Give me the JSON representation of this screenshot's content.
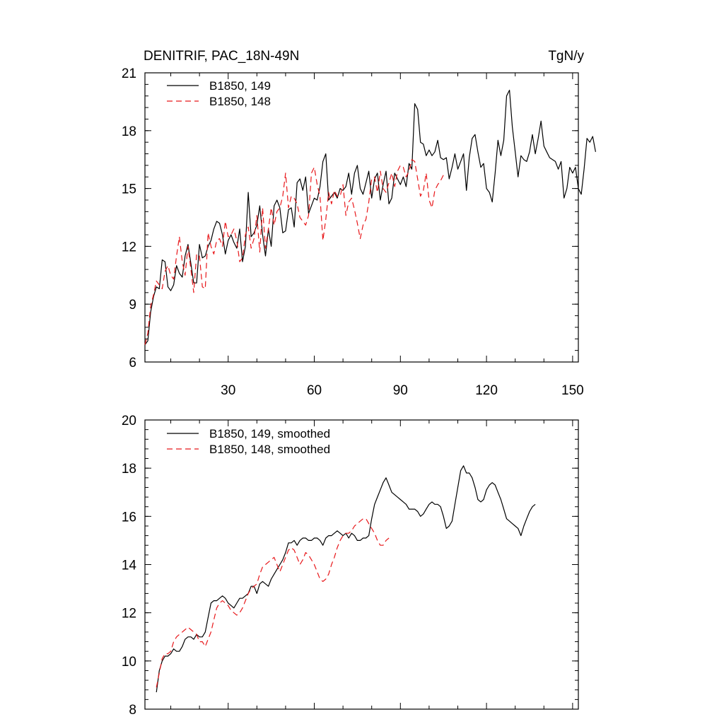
{
  "chart_data": [
    {
      "type": "line",
      "title": "DENITRIF, PAC_18N-49N",
      "units": "TgN/y",
      "xlabel": "",
      "ylabel": "",
      "xlim": [
        1,
        152
      ],
      "ylim": [
        6,
        21
      ],
      "xticks": [
        30,
        60,
        90,
        120,
        150
      ],
      "xtick_labels": [
        "30",
        "60",
        "90",
        "120",
        "150"
      ],
      "yticks": [
        6,
        9,
        12,
        15,
        18,
        21
      ],
      "ytick_labels": [
        "6",
        "9",
        "12",
        "15",
        "18",
        "21"
      ],
      "legend_position": "top-left",
      "series": [
        {
          "name": "B1850, 149",
          "color": "#000000",
          "dash": "solid",
          "x_start": 1,
          "values": [
            6.9,
            7.1,
            8.6,
            9.4,
            9.9,
            9.8,
            11.3,
            11.2,
            9.9,
            9.7,
            10.0,
            11.0,
            10.6,
            10.4,
            11.5,
            12.1,
            11.1,
            10.1,
            10.1,
            12.1,
            11.4,
            11.5,
            12.0,
            12.3,
            12.9,
            13.3,
            13.2,
            12.6,
            11.6,
            12.3,
            12.6,
            12.2,
            11.9,
            12.9,
            11.2,
            12.0,
            14.8,
            12.5,
            12.7,
            13.1,
            14.1,
            12.6,
            11.5,
            12.9,
            12.0,
            14.1,
            14.4,
            14.0,
            12.7,
            12.8,
            13.9,
            14.0,
            13.0,
            15.3,
            15.5,
            14.9,
            15.6,
            13.7,
            14.1,
            14.5,
            14.4,
            15.1,
            16.4,
            16.8,
            14.4,
            14.6,
            14.8,
            14.5,
            15.0,
            14.9,
            15.1,
            15.8,
            14.7,
            15.8,
            16.2,
            15.0,
            14.7,
            15.3,
            15.9,
            14.5,
            15.5,
            15.8,
            14.4,
            15.2,
            15.9,
            14.2,
            14.5,
            15.8,
            15.5,
            15.2,
            15.6,
            15.1,
            16.3,
            16.0,
            19.4,
            19.1,
            17.4,
            17.3,
            16.7,
            17.0,
            16.7,
            16.9,
            17.5,
            16.6,
            16.5,
            16.6,
            15.5,
            16.1,
            16.8,
            16.0,
            16.4,
            16.8,
            14.9,
            16.6,
            17.6,
            17.8,
            16.9,
            16.1,
            16.3,
            15.0,
            14.8,
            14.3,
            15.8,
            17.5,
            16.7,
            17.5,
            19.8,
            20.1,
            18.2,
            16.9,
            15.6,
            16.7,
            16.5,
            16.4,
            16.9,
            17.8,
            16.8,
            17.6,
            18.5,
            17.2,
            16.9,
            16.6,
            16.5,
            16.4,
            16.0,
            16.4,
            14.5,
            15.0,
            16.1,
            15.8,
            16.1,
            15.0,
            14.7,
            16.0,
            17.6,
            17.4,
            17.7,
            16.9
          ]
        },
        {
          "name": "B1850, 148",
          "color": "#e8171a",
          "dash": "dashed",
          "x_start": 1,
          "values": [
            6.9,
            7.5,
            8.9,
            9.5,
            10.2,
            10.0,
            9.8,
            10.7,
            11.0,
            10.5,
            10.3,
            11.5,
            12.5,
            11.2,
            10.5,
            12.0,
            10.8,
            9.6,
            11.6,
            11.5,
            9.9,
            9.8,
            12.7,
            12.0,
            11.6,
            12.3,
            12.4,
            12.0,
            13.3,
            12.5,
            12.6,
            12.9,
            12.3,
            11.2,
            11.4,
            12.6,
            13.0,
            11.9,
            12.4,
            13.6,
            11.7,
            14.0,
            11.9,
            12.9,
            14.0,
            13.1,
            13.8,
            14.0,
            14.6,
            15.8,
            14.0,
            14.6,
            14.5,
            14.2,
            13.5,
            13.3,
            13.1,
            13.6,
            15.8,
            16.1,
            15.2,
            14.6,
            12.3,
            13.4,
            14.8,
            14.2,
            14.9,
            14.6,
            14.6,
            15.2,
            13.6,
            14.3,
            14.5,
            13.9,
            13.2,
            12.4,
            13.1,
            13.4,
            14.3,
            15.5,
            15.6,
            14.8,
            15.9,
            15.0,
            14.8,
            15.3,
            15.8,
            15.1,
            15.9,
            16.2,
            16.1,
            15.6,
            15.9,
            16.5,
            16.4,
            15.5,
            14.6,
            14.9,
            15.8,
            14.4,
            14.0,
            14.9,
            15.2,
            15.4,
            15.7
          ]
        }
      ]
    },
    {
      "type": "line",
      "title": "",
      "xlabel": "",
      "ylabel": "",
      "xlim": [
        1,
        152
      ],
      "ylim": [
        8,
        20
      ],
      "xticks": [
        30,
        60,
        90,
        120,
        150
      ],
      "yticks": [
        8,
        10,
        12,
        14,
        16,
        18,
        20
      ],
      "ytick_labels": [
        "8",
        "10",
        "12",
        "14",
        "16",
        "18",
        "20"
      ],
      "legend_position": "top-left",
      "series": [
        {
          "name": "B1850, 149, smoothed",
          "color": "#000000",
          "dash": "solid",
          "x_start": 5,
          "values": [
            8.7,
            9.6,
            10.0,
            10.2,
            10.2,
            10.3,
            10.5,
            10.4,
            10.4,
            10.6,
            10.9,
            11.0,
            11.0,
            10.9,
            11.1,
            11.0,
            11.0,
            11.2,
            11.8,
            12.4,
            12.5,
            12.5,
            12.6,
            12.7,
            12.6,
            12.4,
            12.3,
            12.2,
            12.4,
            12.6,
            12.6,
            12.7,
            12.8,
            13.1,
            13.1,
            12.8,
            13.2,
            13.3,
            13.2,
            13.1,
            13.4,
            13.6,
            13.8,
            14.0,
            14.2,
            14.5,
            14.9,
            14.9,
            15.0,
            14.8,
            15.0,
            15.1,
            15.1,
            15.0,
            15.0,
            15.1,
            15.1,
            15.0,
            14.8,
            15.1,
            15.2,
            15.2,
            15.3,
            15.4,
            15.3,
            15.2,
            15.3,
            15.1,
            15.3,
            15.2,
            15.0,
            15.0,
            15.1,
            15.1,
            15.2,
            15.9,
            16.5,
            16.8,
            17.1,
            17.4,
            17.6,
            17.3,
            17.0,
            16.9,
            16.8,
            16.7,
            16.6,
            16.5,
            16.3,
            16.3,
            16.3,
            16.2,
            16.0,
            16.1,
            16.3,
            16.5,
            16.6,
            16.5,
            16.5,
            16.4,
            16.0,
            15.5,
            15.6,
            15.8,
            16.5,
            17.2,
            17.9,
            18.1,
            17.8,
            17.8,
            17.6,
            17.2,
            16.7,
            16.6,
            16.7,
            17.1,
            17.3,
            17.4,
            17.3,
            17.0,
            16.7,
            16.3,
            15.9,
            15.8,
            15.7,
            15.6,
            15.5,
            15.2,
            15.6,
            15.9,
            16.2,
            16.4,
            16.5
          ]
        },
        {
          "name": "B1850, 148, smoothed",
          "color": "#e8171a",
          "dash": "dashed",
          "x_start": 5,
          "values": [
            8.9,
            9.5,
            10.1,
            10.3,
            10.3,
            10.4,
            10.8,
            11.0,
            11.1,
            11.2,
            11.3,
            11.4,
            11.3,
            11.2,
            11.1,
            10.8,
            10.8,
            10.6,
            10.9,
            11.2,
            11.7,
            12.2,
            12.4,
            12.5,
            12.4,
            12.3,
            12.1,
            12.0,
            11.9,
            12.0,
            12.2,
            12.5,
            12.8,
            13.0,
            13.1,
            13.2,
            13.6,
            13.9,
            14.0,
            14.1,
            14.2,
            14.3,
            14.0,
            13.7,
            14.0,
            14.3,
            14.6,
            14.7,
            14.6,
            14.3,
            14.0,
            14.2,
            14.5,
            14.4,
            14.2,
            14.0,
            13.7,
            13.4,
            13.3,
            13.4,
            13.6,
            14.0,
            14.3,
            14.7,
            15.0,
            15.2,
            15.3,
            15.3,
            15.4,
            15.6,
            15.7,
            15.8,
            15.9,
            15.9,
            15.7,
            15.5,
            15.3,
            15.0,
            14.8,
            14.8,
            15.0,
            15.1
          ]
        }
      ]
    }
  ]
}
